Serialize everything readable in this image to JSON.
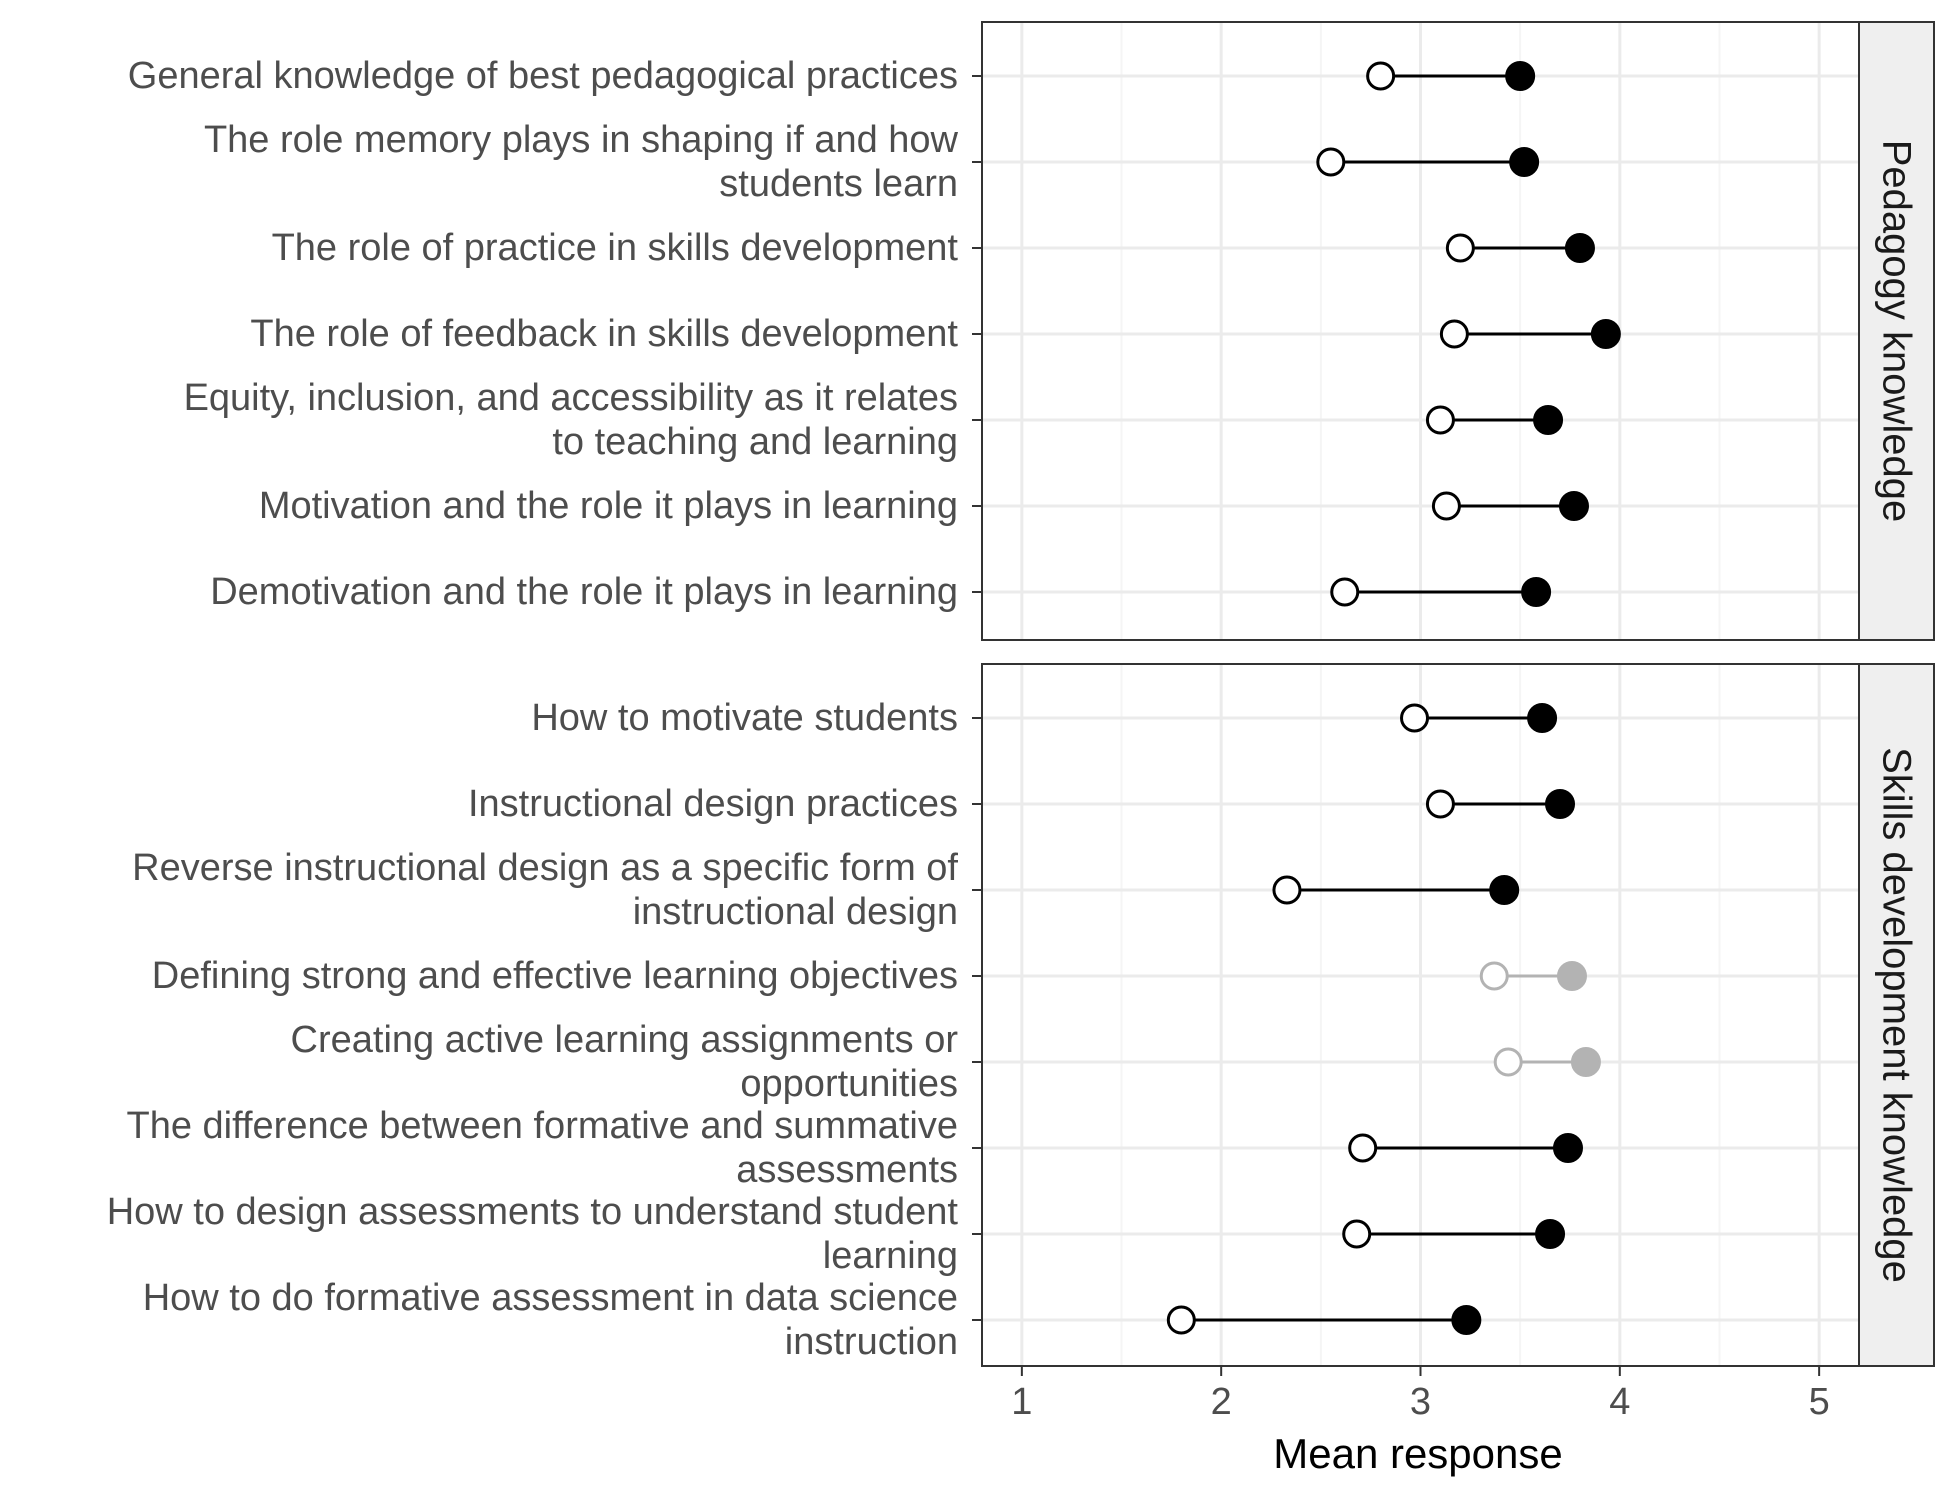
{
  "chart_data": {
    "type": "dumbbell",
    "xlabel": "Mean response",
    "xlim": [
      0.8,
      5.2
    ],
    "x_ticks": [
      1,
      2,
      3,
      4,
      5
    ],
    "grid": true,
    "legend": "none",
    "colors": {
      "primary": "#000000",
      "muted": "#b3b3b3",
      "grid_major": "#ebebeb",
      "grid_minor": "#f5f5f5",
      "strip_bg": "#efefef",
      "panel_border": "#333333"
    },
    "panels": [
      {
        "strip": "Pedagogy knowledge",
        "rows": [
          {
            "label": [
              "General knowledge of best pedagogical practices"
            ],
            "low": 2.8,
            "high": 3.5,
            "muted": false
          },
          {
            "label": [
              "The role memory plays in shaping if and how",
              "students learn"
            ],
            "low": 2.55,
            "high": 3.52,
            "muted": false
          },
          {
            "label": [
              "The role of practice in skills development"
            ],
            "low": 3.2,
            "high": 3.8,
            "muted": false
          },
          {
            "label": [
              "The role of feedback in skills development"
            ],
            "low": 3.17,
            "high": 3.93,
            "muted": false
          },
          {
            "label": [
              "Equity, inclusion, and accessibility as it relates",
              "to teaching and learning"
            ],
            "low": 3.1,
            "high": 3.64,
            "muted": false
          },
          {
            "label": [
              "Motivation and the role it plays in learning"
            ],
            "low": 3.13,
            "high": 3.77,
            "muted": false
          },
          {
            "label": [
              "Demotivation and the role it plays in learning"
            ],
            "low": 2.62,
            "high": 3.58,
            "muted": false
          }
        ]
      },
      {
        "strip": "Skills development knowledge",
        "rows": [
          {
            "label": [
              "How to motivate students"
            ],
            "low": 2.97,
            "high": 3.61,
            "muted": false
          },
          {
            "label": [
              "Instructional design practices"
            ],
            "low": 3.1,
            "high": 3.7,
            "muted": false
          },
          {
            "label": [
              "Reverse instructional design as a specific form of",
              "instructional design"
            ],
            "low": 2.33,
            "high": 3.42,
            "muted": false
          },
          {
            "label": [
              "Defining strong and effective learning objectives"
            ],
            "low": 3.37,
            "high": 3.76,
            "muted": true
          },
          {
            "label": [
              "Creating active learning assignments or",
              "opportunities"
            ],
            "low": 3.44,
            "high": 3.83,
            "muted": true
          },
          {
            "label": [
              "The difference between formative and summative",
              "assessments"
            ],
            "low": 2.71,
            "high": 3.74,
            "muted": false
          },
          {
            "label": [
              "How to design assessments to understand student",
              "learning"
            ],
            "low": 2.68,
            "high": 3.65,
            "muted": false
          },
          {
            "label": [
              "How to do formative assessment in data science",
              "instruction"
            ],
            "low": 1.8,
            "high": 3.23,
            "muted": false
          }
        ]
      }
    ]
  }
}
